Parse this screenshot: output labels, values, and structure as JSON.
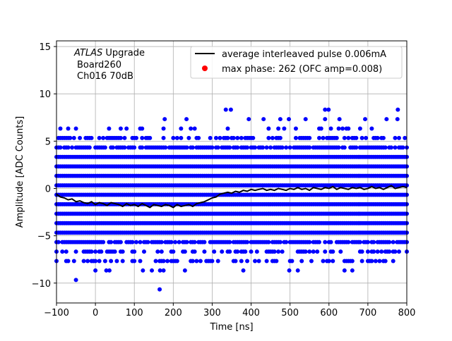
{
  "chart_data": {
    "type": "scatter",
    "xlabel": "Time [ns]",
    "ylabel": "Amplitude [ADC Counts]",
    "xlim": [
      -100,
      800
    ],
    "ylim": [
      -12.1,
      15.6
    ],
    "xticks": [
      -100,
      0,
      100,
      200,
      300,
      400,
      500,
      600,
      700,
      800
    ],
    "yticks": [
      -10,
      -5,
      0,
      5,
      10,
      15
    ],
    "grid": true,
    "legend_position": "top-right",
    "annotation": {
      "italic": "ATLAS",
      "line1_rest": " Upgrade",
      "line2": "Board260",
      "line3": "Ch016 70dB"
    },
    "series": [
      {
        "name": "average interleaved pulse 0.006mA",
        "kind": "line",
        "color": "#000000",
        "x_start": -100,
        "x_step": 10,
        "y": [
          -0.6,
          -0.9,
          -1.0,
          -1.2,
          -1.1,
          -1.4,
          -1.3,
          -1.5,
          -1.6,
          -1.4,
          -1.7,
          -1.5,
          -1.6,
          -1.8,
          -1.5,
          -1.6,
          -1.7,
          -1.9,
          -1.6,
          -1.8,
          -1.7,
          -1.9,
          -1.6,
          -1.8,
          -2.0,
          -1.7,
          -1.8,
          -1.9,
          -1.7,
          -1.8,
          -2.0,
          -1.7,
          -1.9,
          -1.8,
          -1.7,
          -1.9,
          -1.6,
          -1.5,
          -1.4,
          -1.2,
          -1.0,
          -0.9,
          -0.6,
          -0.5,
          -0.4,
          -0.5,
          -0.3,
          -0.4,
          -0.2,
          -0.3,
          -0.1,
          -0.2,
          -0.1,
          0.0,
          -0.2,
          -0.1,
          -0.2,
          0.0,
          -0.1,
          -0.2,
          0.0,
          -0.1,
          0.1,
          -0.1,
          0.0,
          -0.2,
          0.1,
          0.0,
          -0.1,
          0.1,
          0.0,
          0.2,
          -0.1,
          0.1,
          0.0,
          -0.1,
          0.1,
          0.0,
          0.1,
          -0.1,
          0.0,
          0.2,
          0.0,
          0.1,
          -0.1,
          0.1,
          0.3,
          0.0,
          0.1,
          0.2,
          0.1
        ]
      },
      {
        "name": "samples",
        "kind": "scatter",
        "color": "#0000ff",
        "x_step": 5,
        "levels": [
          {
            "y": 3.33,
            "fill": 1
          },
          {
            "y": 2.33,
            "fill": 1
          },
          {
            "y": 1.33,
            "fill": 1
          },
          {
            "y": 0.33,
            "fill": 1
          },
          {
            "y": -0.67,
            "fill": 1
          },
          {
            "y": -1.67,
            "fill": 1
          },
          {
            "y": -2.67,
            "fill": 1
          },
          {
            "y": -3.67,
            "fill": 1
          },
          {
            "y": -4.67,
            "fill": 1
          },
          {
            "y": 4.33,
            "fill": 0.8
          },
          {
            "y": -5.67,
            "fill": 0.8
          },
          {
            "y": 5.33,
            "fill": 0.45
          },
          {
            "y": -6.67,
            "fill": 0.45
          },
          {
            "y": -7.67,
            "fill": 0.3
          },
          {
            "y": 6.33,
            "fill": 0.15
          }
        ],
        "sparse": [
          {
            "y": 8.33,
            "x": [
              335,
              348,
              590,
              599,
              777
            ]
          },
          {
            "y": 7.33,
            "x": [
              178,
              234,
              394,
              432,
              475,
              497,
              540,
              590,
              627,
              693,
              748,
              776
            ]
          },
          {
            "y": -8.67,
            "x": [
              0,
              28,
              36,
              122,
              145,
              166,
              175,
              230,
              380,
              498,
              520,
              640,
              660
            ]
          },
          {
            "y": -9.67,
            "x": [
              -50
            ]
          },
          {
            "y": -10.67,
            "x": [
              165
            ]
          }
        ]
      },
      {
        "name": "max phase: 262 (OFC amp=0.008)",
        "kind": "marker",
        "color": "#ff0000"
      }
    ]
  }
}
